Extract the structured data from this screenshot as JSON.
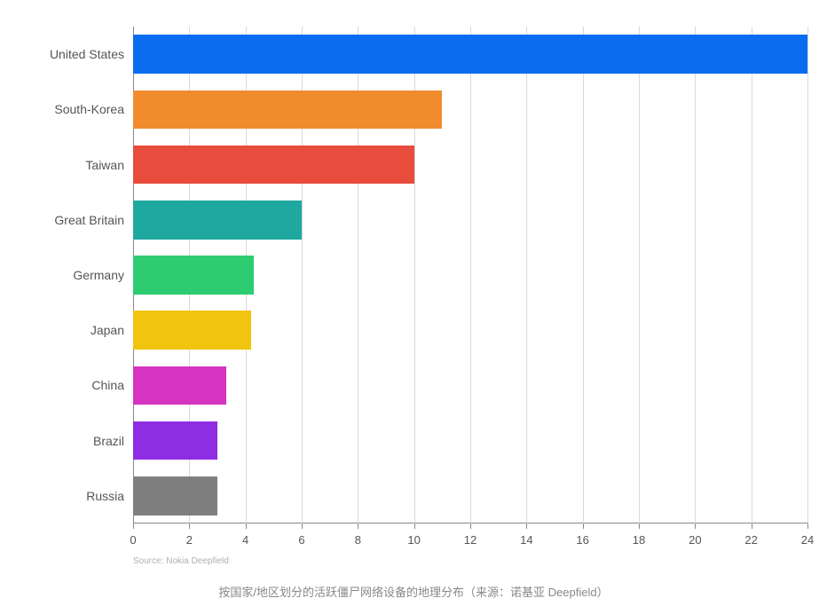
{
  "chart": {
    "type": "bar-horizontal",
    "background_color": "#ffffff",
    "grid_color": "#d9d9d9",
    "axis_color": "#888888",
    "label_color": "#555555",
    "label_fontsize": 14,
    "tick_fontsize": 13,
    "xlim": [
      0,
      24
    ],
    "xtick_step": 2,
    "xticks": [
      0,
      2,
      4,
      6,
      8,
      10,
      12,
      14,
      16,
      18,
      20,
      22,
      24
    ],
    "bar_gap_ratio": 0.3,
    "categories": [
      {
        "label": "United States",
        "value": 24,
        "color": "#0a6df0"
      },
      {
        "label": "South-Korea",
        "value": 11,
        "color": "#f08c2e"
      },
      {
        "label": "Taiwan",
        "value": 10,
        "color": "#e74c3c"
      },
      {
        "label": "Great Britain",
        "value": 6,
        "color": "#1fa8a0"
      },
      {
        "label": "Germany",
        "value": 4.3,
        "color": "#2ecc71"
      },
      {
        "label": "Japan",
        "value": 4.2,
        "color": "#f1c40f"
      },
      {
        "label": "China",
        "value": 3.3,
        "color": "#d633c0"
      },
      {
        "label": "Brazil",
        "value": 3,
        "color": "#8e2de2"
      },
      {
        "label": "Russia",
        "value": 3,
        "color": "#7f7f7f"
      }
    ],
    "source_text": "Source: Nokia Deepfield",
    "source_fontsize": 10,
    "source_color": "#b0b0b0"
  },
  "caption": {
    "text": "按国家/地区划分的活跃僵尸网络设备的地理分布（来源：诺基亚 Deepfield）",
    "fontsize": 13,
    "color": "#888888"
  }
}
